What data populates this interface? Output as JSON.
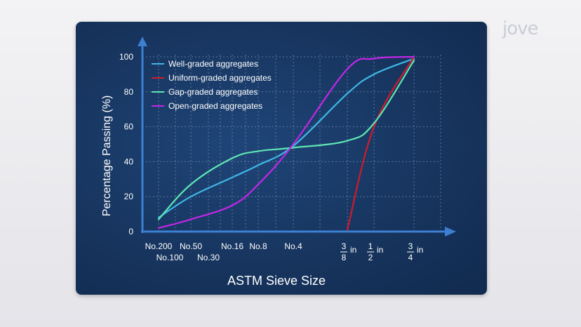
{
  "brand": {
    "logo_text": "jove"
  },
  "chart_data": {
    "type": "line",
    "xlabel": "ASTM Sieve Size",
    "ylabel": "Percentage Passing (%)",
    "ylim": [
      0,
      100
    ],
    "yticks": [
      0,
      20,
      40,
      60,
      80,
      100
    ],
    "x_categories": [
      "No.200",
      "No.100",
      "No.50",
      "No.30",
      "No.16",
      "No.8",
      "No.4",
      "3/8 in",
      "1/2 in",
      "3/4 in"
    ],
    "legend_position": "top-left",
    "grid": true,
    "series": [
      {
        "name": "Well-graded aggregates",
        "color": "#3fb6e6",
        "points": [
          [
            "No.200",
            8
          ],
          [
            "No.50",
            20
          ],
          [
            "No.16",
            31
          ],
          [
            "No.8",
            38
          ],
          [
            "No.4",
            49
          ],
          [
            "3/8 in",
            79
          ],
          [
            "1/2 in",
            90
          ],
          [
            "3/4 in",
            99
          ]
        ]
      },
      {
        "name": "Uniform-graded aggregates",
        "color": "#d01b2a",
        "points": [
          [
            "3/8 in",
            1
          ],
          [
            "1/2 in",
            60
          ],
          [
            "3/4 in",
            100
          ]
        ]
      },
      {
        "name": "Gap-graded aggregates",
        "color": "#5ee6b4",
        "points": [
          [
            "No.200",
            7
          ],
          [
            "No.50",
            27
          ],
          [
            "No.16",
            42
          ],
          [
            "No.8",
            46
          ],
          [
            "No.4",
            48
          ],
          [
            "3/8 in",
            52
          ],
          [
            "1/2 in",
            62
          ],
          [
            "3/4 in",
            98
          ]
        ]
      },
      {
        "name": "Open-graded aggregates",
        "color": "#c326e6",
        "points": [
          [
            "No.200",
            2
          ],
          [
            "No.50",
            7
          ],
          [
            "No.16",
            15
          ],
          [
            "No.8",
            27
          ],
          [
            "No.4",
            50
          ],
          [
            "3/8 in",
            93
          ],
          [
            "1/2 in",
            99
          ],
          [
            "3/4 in",
            100
          ]
        ]
      }
    ],
    "x_tick_labels": [
      {
        "text": "No.200",
        "row": 1
      },
      {
        "text": "No.100",
        "row": 2
      },
      {
        "text": "No.50",
        "row": 1
      },
      {
        "text": "No.30",
        "row": 2
      },
      {
        "text": "No.16",
        "row": 1
      },
      {
        "text": "No.8",
        "row": 1
      },
      {
        "text": "No.4",
        "row": 1
      }
    ],
    "fraction_ticks": [
      {
        "num": "3",
        "den": "8",
        "unit": "in"
      },
      {
        "num": "1",
        "den": "2",
        "unit": "in"
      },
      {
        "num": "3",
        "den": "4",
        "unit": "in"
      }
    ]
  }
}
